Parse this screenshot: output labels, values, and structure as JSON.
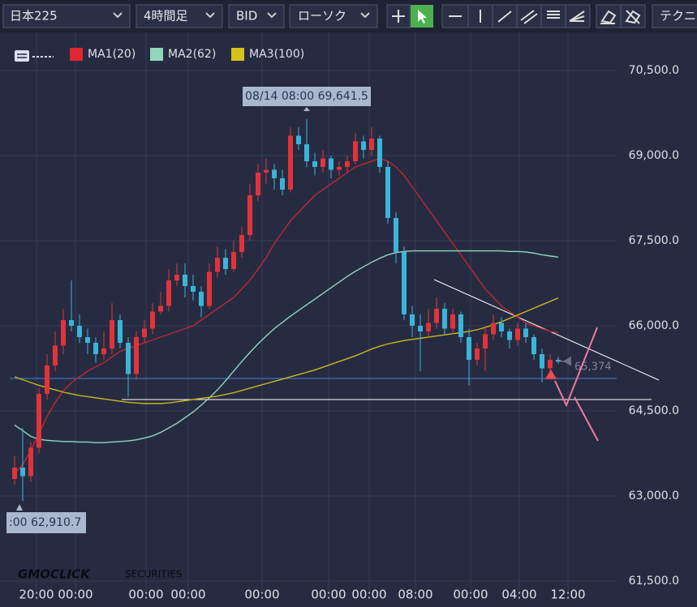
{
  "toolbar": {
    "symbol": "日本225",
    "timeframe": "4時間足",
    "side": "BID",
    "chart_style": "ローソク",
    "technical": "テクニ"
  },
  "chart_data": {
    "type": "candlestick",
    "legend": [
      {
        "name": "MA1(20)",
        "color": "#e0262f"
      },
      {
        "name": "MA2(62)",
        "color": "#8fd6bd"
      },
      {
        "name": "MA3(100)",
        "color": "#d6c21a"
      }
    ],
    "annotations": {
      "high": "08/14 08:00 69,641.5",
      "low": ":00 62,910.7"
    },
    "watermark": {
      "brand": "GMOCLICK",
      "suffix": "SECURITIES"
    },
    "x_labels": [
      "20:00",
      "00:00",
      "00:00",
      "00:00",
      "00:00",
      "00:00",
      "00:00",
      "08:00",
      "00:00",
      "04:00",
      "12:00"
    ],
    "ylim": [
      61314,
      71171
    ],
    "yticks": [
      {
        "value": 70500,
        "label": "70,500.0"
      },
      {
        "value": 69000,
        "label": "69,000.0"
      },
      {
        "value": 67500,
        "label": "67,500.0"
      },
      {
        "value": 66000,
        "label": "66,000.0"
      },
      {
        "value": 64500,
        "label": "64,500.0"
      },
      {
        "value": 63000,
        "label": "63,000.0"
      },
      {
        "value": 61500,
        "label": "61,500.0"
      }
    ],
    "grid": true,
    "up_color": "#e0343a",
    "down_color": "#3ab5d8",
    "last_price": {
      "value": 65374,
      "label": "65,374"
    },
    "candles": [
      [
        63300,
        63700,
        63200,
        63500
      ],
      [
        63500,
        64200,
        62910.7,
        63350
      ],
      [
        63350,
        63950,
        63250,
        63850
      ],
      [
        63850,
        64900,
        63750,
        64800
      ],
      [
        64800,
        65500,
        64700,
        65300
      ],
      [
        65300,
        65900,
        65200,
        65650
      ],
      [
        65650,
        66300,
        65500,
        66100
      ],
      [
        66100,
        66800,
        65900,
        66000
      ],
      [
        66000,
        66200,
        65700,
        65800
      ],
      [
        65800,
        65950,
        65500,
        65700
      ],
      [
        65700,
        65800,
        65350,
        65500
      ],
      [
        65500,
        65900,
        65400,
        65600
      ],
      [
        65600,
        66400,
        65500,
        66100
      ],
      [
        66100,
        66200,
        65600,
        65700
      ],
      [
        65700,
        65800,
        64750,
        65150
      ],
      [
        65150,
        65900,
        65050,
        65800
      ],
      [
        65800,
        66100,
        65700,
        65950
      ],
      [
        65950,
        66400,
        65850,
        66250
      ],
      [
        66250,
        66600,
        66200,
        66350
      ],
      [
        66350,
        67000,
        66250,
        66800
      ],
      [
        66800,
        67100,
        66700,
        66900
      ],
      [
        66900,
        67100,
        66500,
        66700
      ],
      [
        66700,
        66900,
        66450,
        66600
      ],
      [
        66600,
        66700,
        66150,
        66350
      ],
      [
        66350,
        67100,
        66300,
        66950
      ],
      [
        66950,
        67400,
        66850,
        67200
      ],
      [
        67200,
        67350,
        66900,
        67000
      ],
      [
        67000,
        67500,
        66950,
        67300
      ],
      [
        67300,
        67750,
        67200,
        67600
      ],
      [
        67600,
        68500,
        67500,
        68300
      ],
      [
        68300,
        68850,
        68200,
        68700
      ],
      [
        68700,
        68950,
        68500,
        68750
      ],
      [
        68750,
        68850,
        68400,
        68600
      ],
      [
        68600,
        68750,
        68300,
        68400
      ],
      [
        68400,
        69500,
        68350,
        69350
      ],
      [
        69350,
        69500,
        69100,
        69200
      ],
      [
        69200,
        69641.5,
        68800,
        68900
      ],
      [
        68900,
        69050,
        68650,
        68800
      ],
      [
        68800,
        69100,
        68700,
        68950
      ],
      [
        68950,
        69000,
        68600,
        68750
      ],
      [
        68750,
        68900,
        68650,
        68800
      ],
      [
        68800,
        69000,
        68700,
        68900
      ],
      [
        68900,
        69400,
        68850,
        69250
      ],
      [
        69250,
        69350,
        68950,
        69100
      ],
      [
        69100,
        69500,
        69000,
        69300
      ],
      [
        69300,
        69350,
        68700,
        68800
      ],
      [
        68800,
        68900,
        67800,
        67900
      ],
      [
        67900,
        68000,
        67100,
        67300
      ],
      [
        67300,
        67400,
        66100,
        66200
      ],
      [
        66200,
        66350,
        65800,
        66000
      ],
      [
        66000,
        66200,
        65200,
        65900
      ],
      [
        65900,
        66300,
        65800,
        66050
      ],
      [
        66050,
        66500,
        65950,
        66300
      ],
      [
        66300,
        66400,
        65850,
        65950
      ],
      [
        65950,
        66300,
        65850,
        66200
      ],
      [
        66200,
        66250,
        65700,
        65800
      ],
      [
        65800,
        65950,
        64950,
        65400
      ],
      [
        65400,
        65700,
        65300,
        65600
      ],
      [
        65600,
        66000,
        65200,
        65850
      ],
      [
        65850,
        66200,
        65750,
        66050
      ],
      [
        66050,
        66150,
        65800,
        65900
      ],
      [
        65900,
        65950,
        65600,
        65750
      ],
      [
        65750,
        66050,
        65650,
        65950
      ],
      [
        65950,
        66050,
        65700,
        65800
      ],
      [
        65800,
        65850,
        65400,
        65500
      ],
      [
        65500,
        65600,
        65000,
        65250
      ],
      [
        65250,
        65500,
        65150,
        65400
      ],
      [
        65400,
        65450,
        65330,
        65374
      ]
    ],
    "series": [
      {
        "name": "MA1(20)",
        "color": "#c0262f",
        "values": [
          63400,
          63550,
          63800,
          64100,
          64400,
          64650,
          64850,
          65000,
          65100,
          65200,
          65280,
          65350,
          65450,
          65550,
          65600,
          65650,
          65700,
          65750,
          65800,
          65850,
          65900,
          65950,
          66000,
          66100,
          66200,
          66300,
          66400,
          66500,
          66650,
          66800,
          67000,
          67200,
          67450,
          67650,
          67850,
          68000,
          68150,
          68300,
          68400,
          68500,
          68600,
          68700,
          68800,
          68850,
          68900,
          68950,
          68900,
          68800,
          68650,
          68450,
          68250,
          68050,
          67850,
          67650,
          67450,
          67250,
          67050,
          66850,
          66650,
          66500,
          66350,
          66250,
          66150,
          66050,
          66000,
          65950,
          65900,
          65880
        ]
      },
      {
        "name": "MA2(62)",
        "color": "#8fd6bd",
        "values": [
          64250,
          64150,
          64050,
          64000,
          63980,
          63970,
          63960,
          63960,
          63950,
          63950,
          63940,
          63940,
          63950,
          63960,
          63970,
          63990,
          64020,
          64060,
          64120,
          64200,
          64280,
          64380,
          64480,
          64600,
          64730,
          64870,
          65030,
          65200,
          65370,
          65530,
          65680,
          65820,
          65950,
          66060,
          66170,
          66270,
          66370,
          66470,
          66570,
          66670,
          66770,
          66870,
          66960,
          67040,
          67120,
          67190,
          67250,
          67290,
          67310,
          67320,
          67320,
          67320,
          67320,
          67320,
          67320,
          67320,
          67320,
          67320,
          67320,
          67320,
          67320,
          67310,
          67310,
          67300,
          67280,
          67250,
          67230,
          67210
        ]
      },
      {
        "name": "MA3(100)",
        "color": "#c9b81c",
        "values": [
          65100,
          65050,
          65000,
          64950,
          64910,
          64870,
          64830,
          64800,
          64770,
          64750,
          64730,
          64710,
          64690,
          64670,
          64650,
          64640,
          64630,
          64630,
          64630,
          64640,
          64660,
          64680,
          64700,
          64720,
          64740,
          64760,
          64790,
          64820,
          64860,
          64900,
          64940,
          64980,
          65020,
          65060,
          65100,
          65140,
          65180,
          65220,
          65270,
          65320,
          65370,
          65420,
          65470,
          65530,
          65590,
          65640,
          65680,
          65710,
          65740,
          65760,
          65780,
          65800,
          65820,
          65840,
          65860,
          65880,
          65900,
          65930,
          65970,
          66020,
          66070,
          66130,
          66190,
          66250,
          66310,
          66370,
          66430,
          66490
        ]
      }
    ]
  }
}
